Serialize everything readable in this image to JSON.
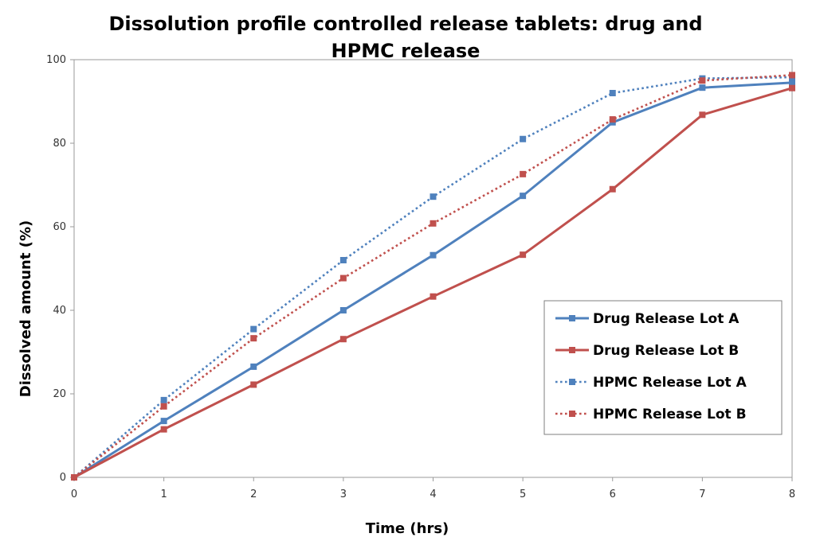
{
  "chart_data": {
    "type": "line",
    "title": "Dissolution profile controlled release tablets: drug and HPMC release",
    "title_lines": [
      "Dissolution profile controlled release tablets: drug and",
      "HPMC release"
    ],
    "xlabel": "Time (hrs)",
    "ylabel": "Dissolved amount (%)",
    "x": [
      0,
      1,
      2,
      3,
      4,
      5,
      6,
      7,
      8
    ],
    "xlim": [
      0,
      8
    ],
    "ylim": [
      0,
      100
    ],
    "xticks": [
      0,
      1,
      2,
      3,
      4,
      5,
      6,
      7,
      8
    ],
    "yticks": [
      0,
      20,
      40,
      60,
      80,
      100
    ],
    "grid": false,
    "legend_position": "right",
    "series": [
      {
        "name": "Drug Release Lot A",
        "color": "#4F81BD",
        "style": "solid",
        "values": [
          0,
          13.5,
          26.5,
          40,
          53.2,
          67.4,
          85,
          93.3,
          94.5
        ]
      },
      {
        "name": "Drug Release Lot B",
        "color": "#C0504D",
        "style": "solid",
        "values": [
          0,
          11.5,
          22.2,
          33.1,
          43.3,
          53.3,
          69,
          86.8,
          93.2
        ]
      },
      {
        "name": "HPMC Release Lot A",
        "color": "#4F81BD",
        "style": "dotted",
        "values": [
          0,
          18.5,
          35.5,
          52,
          67.2,
          81,
          92,
          95.5,
          95.8
        ]
      },
      {
        "name": "HPMC Release Lot B",
        "color": "#C0504D",
        "style": "dotted",
        "values": [
          0,
          17,
          33.3,
          47.7,
          60.8,
          72.6,
          85.7,
          95,
          96.3
        ]
      }
    ]
  }
}
